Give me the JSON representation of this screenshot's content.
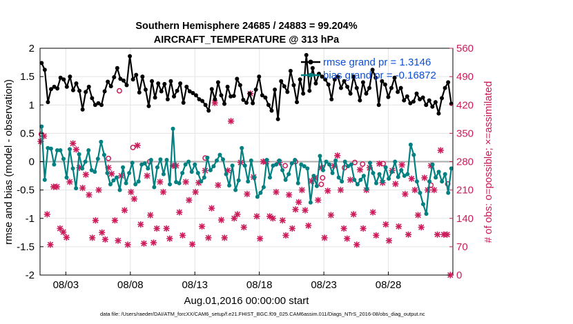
{
  "chart_data": {
    "type": "line",
    "title_line1": "Southern Hemisphere 24685 / 24883 = 99.204%",
    "title_line2": "AIRCRAFT_TEMPERATURE @ 313 hPa",
    "xlabel": "Aug.01,2016 00:00:00 start",
    "ylabel": "rmse and bias (model - observation)",
    "y2label": "# of obs: o=possible; ×=assimilated",
    "xlim": [
      1,
      33
    ],
    "ylim": [
      -2,
      2
    ],
    "y2lim": [
      0,
      560
    ],
    "x_ticks": [
      3,
      8,
      13,
      18,
      23,
      28
    ],
    "x_tick_labels": [
      "08/03",
      "08/08",
      "08/13",
      "08/18",
      "08/23",
      "08/28"
    ],
    "y_ticks": [
      -2,
      -1.5,
      -1,
      -0.5,
      0,
      0.5,
      1,
      1.5,
      2
    ],
    "y_tick_labels": [
      "-2",
      "-1.5",
      "-1",
      "-0.5",
      "0",
      "0.5",
      "1",
      "1.5",
      "2"
    ],
    "y2_ticks": [
      0,
      70,
      140,
      210,
      280,
      350,
      420,
      490,
      560
    ],
    "y2_tick_labels": [
      "0",
      "70",
      "140",
      "210",
      "280",
      "350",
      "420",
      "490",
      "560"
    ],
    "grid": true,
    "legend_position": "top-right",
    "colors": {
      "rmse": "#000000",
      "bias": "#008080",
      "obs": "#cc1a5a",
      "zero": "#aaaaaa",
      "legend_text": "#0b4fd6"
    },
    "footer": "data file: /Users/raeder/DAI/ATM_forcXX/CAM6_setup/f.e21.FHIST_BGC.f09_025.CAM6assim.011/Diags_NTrS_2016-08/obs_diag_output.nc",
    "series": [
      {
        "name": "rmse grand pr = 1.3146",
        "values": [
          1.74,
          1.62,
          1.05,
          1.28,
          1.32,
          1.29,
          1.48,
          1.45,
          1.32,
          1.5,
          1.26,
          1.38,
          1.25,
          0.92,
          1.23,
          1.32,
          1.12,
          1.0,
          1.03,
          1.0,
          1.24,
          1.41,
          1.33,
          1.49,
          1.65,
          1.46,
          1.43,
          1.35,
          1.86,
          1.45,
          1.53,
          1.22,
          1.5,
          1.27,
          0.98,
          1.42,
          1.13,
          1.38,
          1.24,
          1.37,
          1.1,
          1.42,
          1.15,
          1.25,
          1.38,
          1.04,
          1.32,
          1.24,
          1.21,
          1.17,
          1.1,
          1.07,
          1.0,
          0.9,
          1.28,
          1.1,
          1.4,
          1.17,
          1.02,
          1.32,
          1.15,
          1.16,
          1.46,
          1.35,
          1.09,
          1.04,
          1.2,
          1.03,
          1.27,
          1.5,
          1.17,
          1.13,
          1.0,
          0.9,
          1.27,
          0.75,
          1.42,
          1.33,
          1.23,
          1.6,
          1.35,
          1.05,
          1.45,
          1.2,
          1.88,
          1.25,
          1.65,
          1.38,
          1.55,
          1.5,
          1.45,
          1.36,
          1.1,
          1.45,
          1.5,
          1.3,
          1.42,
          1.32,
          1.2,
          1.5,
          1.3,
          1.08,
          1.4,
          1.2,
          1.3,
          1.62,
          1.48,
          1.0,
          1.42,
          1.36,
          1.14,
          1.3,
          1.48,
          1.23,
          1.3,
          1.08,
          1.15,
          1.03,
          1.06,
          1.2,
          1.1,
          1.13,
          1.0,
          1.08,
          0.97,
          1.05,
          0.85,
          1.12,
          1.3,
          1.4,
          1.02
        ]
      },
      {
        "name": "bias grand pr = -0.16872",
        "values": [
          0.62,
          -0.32,
          0.24,
          0.23,
          -0.05,
          0.2,
          0.2,
          0.05,
          -0.28,
          0.22,
          -0.12,
          -0.47,
          0.13,
          -0.12,
          0.0,
          0.2,
          -0.15,
          -0.18,
          0.05,
          0.35,
          0.12,
          -0.2,
          -0.4,
          -0.33,
          -0.28,
          -0.5,
          -0.1,
          -0.38,
          -0.2,
          -0.02,
          -0.4,
          -0.35,
          -0.05,
          -0.03,
          -0.12,
          0.03,
          -0.45,
          -0.1,
          0.04,
          -0.22,
          0.03,
          -0.4,
          0.58,
          -0.36,
          -0.38,
          -0.2,
          -0.05,
          0.0,
          -0.18,
          -0.05,
          -0.2,
          -0.35,
          -0.28,
          0.07,
          -0.15,
          -0.08,
          0.02,
          0.12,
          0.04,
          -0.22,
          -0.42,
          -0.07,
          -0.5,
          -0.33,
          0.24,
          -0.07,
          -0.35,
          0.02,
          -0.28,
          -0.62,
          -0.55,
          -0.45,
          0.03,
          -0.28,
          -0.07,
          -0.05,
          0.02,
          -0.15,
          -0.32,
          -0.22,
          -0.03,
          0.03,
          -0.38,
          -0.05,
          -0.08,
          -0.12,
          -0.72,
          -0.25,
          -0.43,
          0.1,
          -0.15,
          0.0,
          -0.05,
          -0.2,
          0.02,
          -0.28,
          -0.35,
          0.0,
          -0.08,
          -0.05,
          -0.32,
          -0.4,
          -0.32,
          -0.25,
          -0.48,
          -0.02,
          -0.2,
          -0.38,
          -0.22,
          -0.35,
          -0.1,
          -0.3,
          -0.18,
          0.0,
          -0.27,
          -0.15,
          -0.25,
          -0.22,
          0.3,
          0.12,
          -0.35,
          -0.55,
          -0.75,
          -0.92,
          -0.35,
          -0.05,
          -0.28,
          -0.18,
          -0.35,
          -0.22,
          -0.55,
          -0.12
        ]
      }
    ],
    "obs_points": [
      [
        1.05,
        330
      ],
      [
        1.3,
        343
      ],
      [
        1.55,
        150
      ],
      [
        1.8,
        75
      ],
      [
        2.05,
        218
      ],
      [
        2.3,
        218
      ],
      [
        2.55,
        115
      ],
      [
        2.8,
        106
      ],
      [
        3.05,
        93
      ],
      [
        3.3,
        230
      ],
      [
        3.55,
        325
      ],
      [
        3.8,
        310
      ],
      [
        4.05,
        265
      ],
      [
        4.3,
        215
      ],
      [
        4.55,
        248
      ],
      [
        4.8,
        198
      ],
      [
        5.05,
        92
      ],
      [
        5.3,
        135
      ],
      [
        5.55,
        210
      ],
      [
        5.8,
        105
      ],
      [
        6.05,
        88
      ],
      [
        6.3,
        265
      ],
      [
        6.55,
        250
      ],
      [
        6.8,
        135
      ],
      [
        7.05,
        85
      ],
      [
        7.3,
        245
      ],
      [
        7.55,
        160
      ],
      [
        7.8,
        75
      ],
      [
        8.05,
        205
      ],
      [
        8.3,
        188
      ],
      [
        8.55,
        320
      ],
      [
        8.8,
        125
      ],
      [
        9.05,
        78
      ],
      [
        9.3,
        245
      ],
      [
        9.55,
        148
      ],
      [
        9.8,
        80
      ],
      [
        10.05,
        115
      ],
      [
        10.3,
        230
      ],
      [
        10.55,
        205
      ],
      [
        10.8,
        115
      ],
      [
        11.05,
        90
      ],
      [
        11.3,
        270
      ],
      [
        11.55,
        270
      ],
      [
        11.8,
        155
      ],
      [
        12.05,
        98
      ],
      [
        12.3,
        230
      ],
      [
        12.55,
        185
      ],
      [
        12.8,
        76
      ],
      [
        13.05,
        205
      ],
      [
        13.3,
        228
      ],
      [
        13.55,
        120
      ],
      [
        13.8,
        258
      ],
      [
        14.05,
        92
      ],
      [
        14.3,
        165
      ],
      [
        14.55,
        425
      ],
      [
        14.8,
        222
      ],
      [
        15.05,
        136
      ],
      [
        15.3,
        92
      ],
      [
        15.55,
        258
      ],
      [
        15.8,
        380
      ],
      [
        16.05,
        140
      ],
      [
        16.3,
        150
      ],
      [
        16.55,
        278
      ],
      [
        16.8,
        118
      ],
      [
        17.05,
        200
      ],
      [
        17.3,
        448
      ],
      [
        17.55,
        242
      ],
      [
        17.8,
        145
      ],
      [
        18.05,
        90
      ],
      [
        18.3,
        280
      ],
      [
        18.55,
        280
      ],
      [
        18.8,
        145
      ],
      [
        19.05,
        140
      ],
      [
        19.3,
        205
      ],
      [
        19.55,
        278
      ],
      [
        19.8,
        135
      ],
      [
        20.05,
        98
      ],
      [
        20.3,
        198
      ],
      [
        20.55,
        115
      ],
      [
        20.8,
        162
      ],
      [
        21.05,
        180
      ],
      [
        21.3,
        210
      ],
      [
        21.55,
        160
      ],
      [
        21.8,
        122
      ],
      [
        22.05,
        232
      ],
      [
        22.3,
        240
      ],
      [
        22.55,
        185
      ],
      [
        22.8,
        265
      ],
      [
        23.05,
        92
      ],
      [
        23.3,
        208
      ],
      [
        23.55,
        148
      ],
      [
        23.8,
        270
      ],
      [
        24.05,
        295
      ],
      [
        24.3,
        210
      ],
      [
        24.55,
        115
      ],
      [
        24.8,
        90
      ],
      [
        25.05,
        235
      ],
      [
        25.3,
        150
      ],
      [
        25.55,
        75
      ],
      [
        25.8,
        260
      ],
      [
        26.05,
        115
      ],
      [
        26.3,
        210
      ],
      [
        26.55,
        265
      ],
      [
        26.8,
        155
      ],
      [
        27.05,
        98
      ],
      [
        27.3,
        275
      ],
      [
        27.55,
        228
      ],
      [
        27.8,
        125
      ],
      [
        28.05,
        85
      ],
      [
        28.3,
        258
      ],
      [
        28.55,
        225
      ],
      [
        28.8,
        120
      ],
      [
        29.05,
        272
      ],
      [
        29.3,
        200
      ],
      [
        29.55,
        100
      ],
      [
        29.8,
        238
      ],
      [
        30.05,
        210
      ],
      [
        30.3,
        148
      ],
      [
        30.55,
        118
      ],
      [
        30.8,
        240
      ],
      [
        31.05,
        210
      ],
      [
        31.3,
        270
      ],
      [
        31.55,
        210
      ],
      [
        31.8,
        100
      ],
      [
        32.05,
        308
      ],
      [
        32.3,
        100
      ],
      [
        32.55,
        100
      ],
      [
        32.8,
        0
      ]
    ],
    "possible_points": [
      [
        1.1,
        348
      ],
      [
        6.3,
        288
      ],
      [
        7.15,
        455
      ],
      [
        8.2,
        315
      ],
      [
        9.5,
        280
      ],
      [
        13.8,
        289
      ],
      [
        20.0,
        270
      ],
      [
        20.8,
        280
      ],
      [
        22.8,
        224
      ],
      [
        22.9,
        240
      ],
      [
        24.6,
        265
      ],
      [
        25.4,
        278
      ],
      [
        26.0,
        274
      ],
      [
        27.6,
        275
      ],
      [
        31.3,
        222
      ],
      [
        32.6,
        225
      ]
    ]
  }
}
